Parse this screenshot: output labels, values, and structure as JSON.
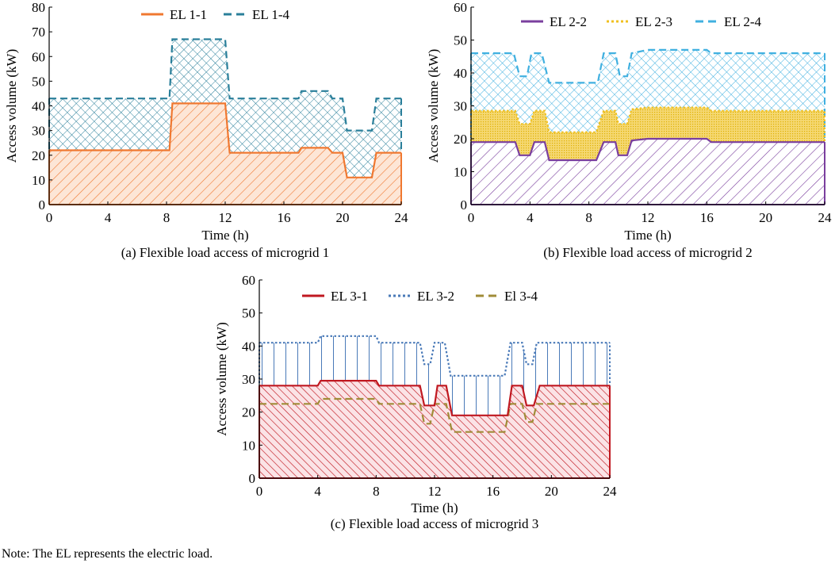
{
  "note": "Note: The EL represents the electric load.",
  "chart_data": [
    {
      "type": "area",
      "caption": "(a) Flexible load access of microgrid 1",
      "xlabel": "Time (h)",
      "ylabel": "Access volume (kW)",
      "xlim": [
        0,
        24
      ],
      "ylim": [
        0,
        80
      ],
      "xticks": [
        0,
        4,
        8,
        12,
        16,
        20,
        24
      ],
      "yticks": [
        0,
        10,
        20,
        30,
        40,
        50,
        60,
        70,
        80
      ],
      "grid": false,
      "legend_position": "top-center",
      "series": [
        {
          "name": "EL 1-1",
          "color": "#f07830",
          "style": "solid",
          "fill": "diagonal-hatch",
          "points": [
            [
              0,
              22
            ],
            [
              8.2,
              22
            ],
            [
              8.4,
              41
            ],
            [
              12,
              41
            ],
            [
              12.3,
              21
            ],
            [
              17,
              21
            ],
            [
              17.2,
              23
            ],
            [
              19,
              23
            ],
            [
              19.3,
              21
            ],
            [
              20,
              21
            ],
            [
              20.3,
              11
            ],
            [
              22,
              11
            ],
            [
              22.3,
              21
            ],
            [
              24,
              21
            ]
          ]
        },
        {
          "name": "EL 1-4",
          "color": "#2a7f9a",
          "style": "dashed",
          "fill": "crosshatch",
          "points": [
            [
              0,
              43
            ],
            [
              8.2,
              43
            ],
            [
              8.4,
              67
            ],
            [
              12,
              67
            ],
            [
              12.3,
              43
            ],
            [
              17,
              43
            ],
            [
              17.2,
              46
            ],
            [
              19,
              46
            ],
            [
              19.3,
              43
            ],
            [
              20,
              43
            ],
            [
              20.3,
              30
            ],
            [
              22,
              30
            ],
            [
              22.3,
              43
            ],
            [
              24,
              43
            ]
          ]
        }
      ]
    },
    {
      "type": "area",
      "caption": "(b) Flexible load access of microgrid 2",
      "xlabel": "Time (h)",
      "ylabel": "Access volume (kW)",
      "xlim": [
        0,
        24
      ],
      "ylim": [
        0,
        60
      ],
      "xticks": [
        0,
        4,
        8,
        12,
        16,
        20,
        24
      ],
      "yticks": [
        0,
        10,
        20,
        30,
        40,
        50,
        60
      ],
      "grid": false,
      "legend_position": "top-center",
      "series": [
        {
          "name": "EL 2-2",
          "color": "#7a3f9e",
          "style": "solid",
          "fill": "diagonal-hatch",
          "points": [
            [
              0,
              19
            ],
            [
              3,
              19
            ],
            [
              3.3,
              15
            ],
            [
              4,
              15
            ],
            [
              4.3,
              19
            ],
            [
              5,
              19
            ],
            [
              5.3,
              13.5
            ],
            [
              8.5,
              13.5
            ],
            [
              9,
              19
            ],
            [
              9.8,
              19
            ],
            [
              10,
              15
            ],
            [
              10.6,
              15
            ],
            [
              10.9,
              19.5
            ],
            [
              12,
              20
            ],
            [
              16,
              20
            ],
            [
              16.3,
              19
            ],
            [
              20,
              19
            ],
            [
              24,
              19
            ]
          ]
        },
        {
          "name": "EL 2-3",
          "color": "#f0c020",
          "style": "dotted",
          "fill": "dense-dots",
          "points": [
            [
              0,
              28.5
            ],
            [
              3,
              28.5
            ],
            [
              3.3,
              24.5
            ],
            [
              4,
              24.5
            ],
            [
              4.3,
              28.5
            ],
            [
              5,
              28.5
            ],
            [
              5.3,
              22
            ],
            [
              8.5,
              22
            ],
            [
              9,
              28.5
            ],
            [
              9.8,
              28.5
            ],
            [
              10,
              24.5
            ],
            [
              10.6,
              24.5
            ],
            [
              10.9,
              29
            ],
            [
              12,
              29.5
            ],
            [
              16,
              29.5
            ],
            [
              16.3,
              28.5
            ],
            [
              24,
              28.5
            ]
          ]
        },
        {
          "name": "EL 2-4",
          "color": "#40b0e0",
          "style": "dashed",
          "fill": "crosshatch",
          "points": [
            [
              0,
              46
            ],
            [
              2.9,
              46
            ],
            [
              3.3,
              39
            ],
            [
              3.8,
              39
            ],
            [
              4.1,
              46
            ],
            [
              4.8,
              46
            ],
            [
              5.3,
              37
            ],
            [
              8.6,
              37
            ],
            [
              9,
              46
            ],
            [
              9.8,
              46
            ],
            [
              10.1,
              39
            ],
            [
              10.6,
              39
            ],
            [
              10.9,
              46
            ],
            [
              12,
              47
            ],
            [
              16,
              47
            ],
            [
              16.3,
              46
            ],
            [
              24,
              46
            ]
          ]
        }
      ]
    },
    {
      "type": "area",
      "caption": "(c) Flexible load access of microgrid 3",
      "xlabel": "Time (h)",
      "ylabel": "Access volume (kW)",
      "xlim": [
        0,
        24
      ],
      "ylim": [
        0,
        60
      ],
      "xticks": [
        0,
        4,
        8,
        12,
        16,
        20,
        24
      ],
      "yticks": [
        0,
        10,
        20,
        30,
        40,
        50,
        60
      ],
      "grid": false,
      "legend_position": "top-center",
      "series": [
        {
          "name": "EL 3-1",
          "color": "#c01820",
          "style": "solid",
          "fill": "diagonal-hatch",
          "points": [
            [
              0,
              28
            ],
            [
              4,
              28
            ],
            [
              4.2,
              29.5
            ],
            [
              8,
              29.5
            ],
            [
              8.2,
              28
            ],
            [
              11,
              28
            ],
            [
              11.3,
              22
            ],
            [
              12,
              22
            ],
            [
              12.2,
              28
            ],
            [
              12.8,
              28
            ],
            [
              13.2,
              19
            ],
            [
              17,
              19
            ],
            [
              17.3,
              28
            ],
            [
              18,
              28
            ],
            [
              18.3,
              22
            ],
            [
              18.8,
              22
            ],
            [
              19.2,
              28
            ],
            [
              24,
              28
            ]
          ]
        },
        {
          "name": "EL 3-2",
          "color": "#4a7ab8",
          "style": "dotted",
          "fill": "vertical-lines",
          "points": [
            [
              0,
              41
            ],
            [
              4,
              41
            ],
            [
              4.2,
              43
            ],
            [
              8,
              43
            ],
            [
              8.2,
              41
            ],
            [
              11,
              41
            ],
            [
              11.3,
              34.5
            ],
            [
              11.7,
              34.5
            ],
            [
              12,
              41
            ],
            [
              12.7,
              41
            ],
            [
              13.1,
              31
            ],
            [
              16.8,
              31
            ],
            [
              17.2,
              41
            ],
            [
              18,
              41
            ],
            [
              18.3,
              34.5
            ],
            [
              18.7,
              34.5
            ],
            [
              19,
              41
            ],
            [
              24,
              41
            ]
          ]
        },
        {
          "name": "El 3-4",
          "color": "#a08c38",
          "style": "dashed",
          "fill": "crosshatch",
          "points": [
            [
              0,
              22.5
            ],
            [
              4,
              22.5
            ],
            [
              4.2,
              24
            ],
            [
              8,
              24
            ],
            [
              8.2,
              22.5
            ],
            [
              11,
              22.5
            ],
            [
              11.3,
              16.5
            ],
            [
              11.7,
              16.5
            ],
            [
              12,
              22.5
            ],
            [
              12.8,
              22.5
            ],
            [
              13.2,
              14
            ],
            [
              16.8,
              14
            ],
            [
              17.2,
              22.5
            ],
            [
              18,
              22.5
            ],
            [
              18.3,
              17
            ],
            [
              18.7,
              17
            ],
            [
              19,
              22.5
            ],
            [
              24,
              22.5
            ]
          ]
        }
      ]
    }
  ]
}
